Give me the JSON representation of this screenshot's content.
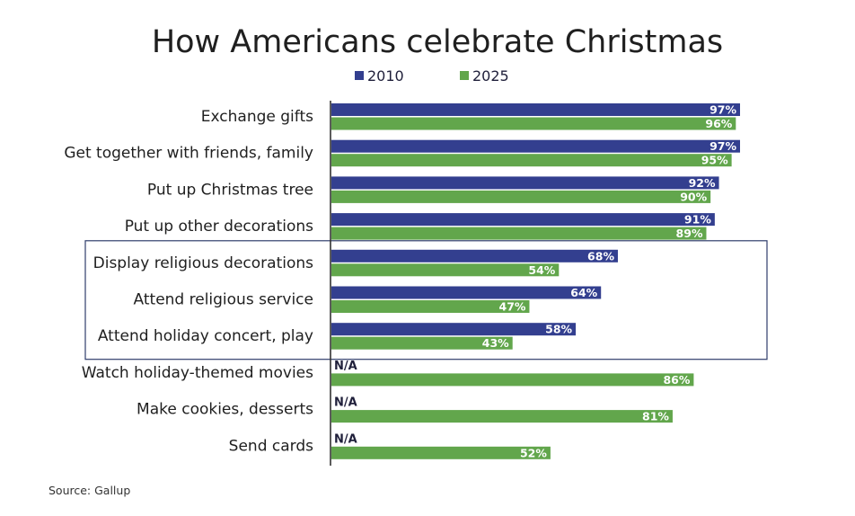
{
  "chart_data": {
    "type": "bar",
    "orientation": "horizontal",
    "title": "How Americans celebrate Christmas",
    "xlabel": "",
    "ylabel": "",
    "xlim": [
      0,
      100
    ],
    "unit": "%",
    "grid": false,
    "legend_position": "top",
    "categories": [
      "Exchange gifts",
      "Get together with friends, family",
      "Put up Christmas tree",
      "Put up other decorations",
      "Display religious decorations",
      "Attend religious service",
      "Attend holiday concert, play",
      "Watch holiday-themed movies",
      "Make cookies, desserts",
      "Send cards"
    ],
    "series": [
      {
        "name": "2010",
        "color": "#333f8f",
        "values": [
          97,
          97,
          92,
          91,
          68,
          64,
          58,
          null,
          null,
          null
        ]
      },
      {
        "name": "2025",
        "color": "#62a64c",
        "values": [
          96,
          95,
          90,
          89,
          54,
          47,
          43,
          86,
          81,
          52
        ]
      }
    ],
    "missing_label": "N/A",
    "highlighted_categories": [
      4,
      5,
      6
    ],
    "highlight_box_color": "#2f3d6b",
    "source": "Source:  Gallup"
  }
}
